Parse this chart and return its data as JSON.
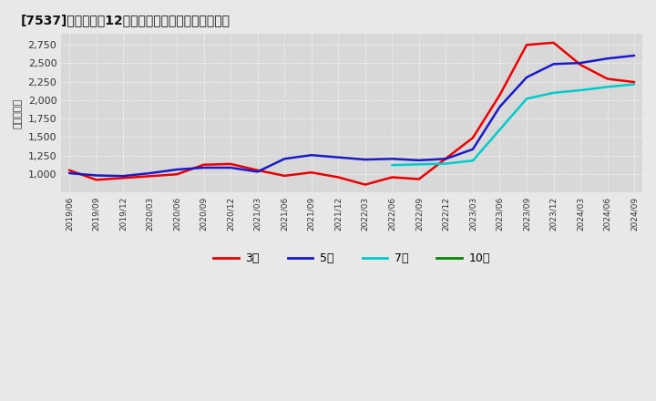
{
  "title": "[7537]　経常利益12か月移動合計の標準偏差の推移",
  "ylabel": "（百万円）",
  "ylim": [
    750,
    2900
  ],
  "yticks": [
    1000,
    1250,
    1500,
    1750,
    2000,
    2250,
    2500,
    2750
  ],
  "bg_color": "#e8e8e8",
  "plot_bg_color": "#d8d8d8",
  "grid_color": "#ffffff",
  "x_labels": [
    "2019/06",
    "2019/09",
    "2019/12",
    "2020/03",
    "2020/06",
    "2020/09",
    "2020/12",
    "2021/03",
    "2021/06",
    "2021/09",
    "2021/12",
    "2022/03",
    "2022/06",
    "2022/09",
    "2022/12",
    "2023/03",
    "2023/06",
    "2023/09",
    "2023/12",
    "2024/03",
    "2024/06",
    "2024/09"
  ],
  "series_3y_color": "#ee0000",
  "series_5y_color": "#1a1acc",
  "series_7y_color": "#00cccc",
  "series_10y_color": "#008800",
  "series_3y": [
    1050,
    920,
    945,
    970,
    995,
    1125,
    1135,
    1050,
    975,
    1020,
    955,
    855,
    955,
    930,
    1210,
    1490,
    2070,
    2750,
    2780,
    2480,
    2290,
    2245
  ],
  "series_5y": [
    1010,
    980,
    972,
    1010,
    1060,
    1085,
    1085,
    1030,
    1205,
    1255,
    1225,
    1195,
    1205,
    1185,
    1205,
    1335,
    1910,
    2310,
    2490,
    2505,
    2565,
    2605
  ],
  "series_7y": [
    null,
    null,
    null,
    null,
    null,
    null,
    null,
    null,
    null,
    null,
    null,
    null,
    1120,
    1130,
    1140,
    1180,
    1600,
    2020,
    2100,
    2135,
    2180,
    2215
  ],
  "series_10y": [
    null,
    null,
    null,
    null,
    null,
    null,
    null,
    null,
    null,
    null,
    null,
    null,
    null,
    null,
    null,
    null,
    null,
    null,
    null,
    null,
    null,
    null
  ],
  "legend_labels": [
    "3年",
    "5年",
    "7年",
    "10年"
  ],
  "legend_colors": [
    "#ee0000",
    "#1a1acc",
    "#00cccc",
    "#008800"
  ]
}
